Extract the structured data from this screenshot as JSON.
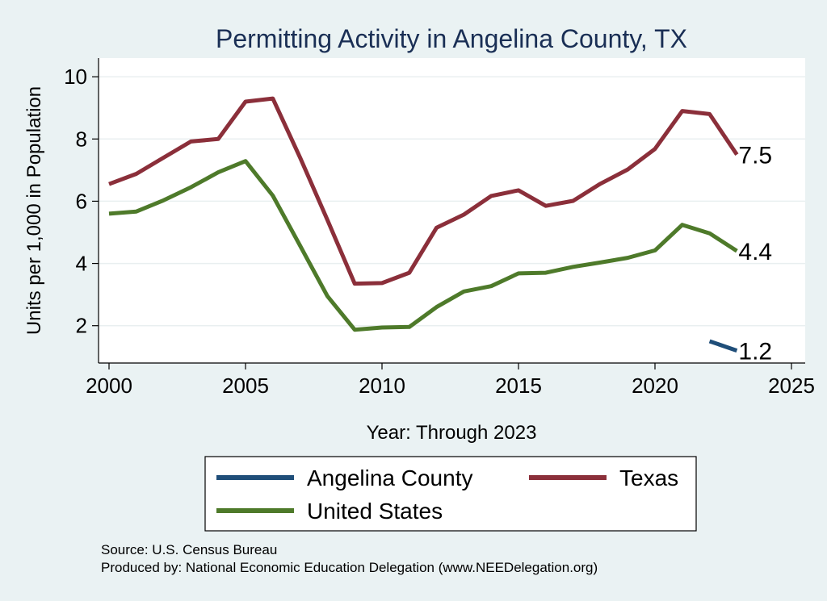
{
  "chart_data": {
    "type": "line",
    "title": "Permitting Activity in Angelina County, TX",
    "xlabel": "Year: Through 2023",
    "ylabel": "Units per 1,000 in Population",
    "xlim": [
      2000,
      2025
    ],
    "ylim": [
      0.8,
      10.6
    ],
    "x_ticks": [
      2000,
      2005,
      2010,
      2015,
      2020,
      2025
    ],
    "x_tick_labels": [
      "2000",
      "2005",
      "2010",
      "2015",
      "2020",
      "2025"
    ],
    "y_ticks": [
      2,
      4,
      6,
      8,
      10
    ],
    "y_tick_labels": [
      "2",
      "4",
      "6",
      "8",
      "10"
    ],
    "grid": true,
    "series": [
      {
        "name": "Angelina County",
        "color": "#1f4e79",
        "x": [
          2022,
          2023
        ],
        "values": [
          1.5,
          1.2
        ],
        "end_label": "1.2"
      },
      {
        "name": "Texas",
        "color": "#8b2f3a",
        "x": [
          2000,
          2001,
          2002,
          2003,
          2004,
          2005,
          2006,
          2007,
          2008,
          2009,
          2010,
          2011,
          2012,
          2013,
          2014,
          2015,
          2016,
          2017,
          2018,
          2019,
          2020,
          2021,
          2022,
          2023
        ],
        "values": [
          6.55,
          6.88,
          7.4,
          7.92,
          8.0,
          9.2,
          9.3,
          7.4,
          5.4,
          3.35,
          3.37,
          3.7,
          5.15,
          5.57,
          6.17,
          6.35,
          5.85,
          6.01,
          6.56,
          7.02,
          7.68,
          8.9,
          8.8,
          7.5
        ],
        "end_label": "7.5"
      },
      {
        "name": "United States",
        "color": "#4e7a2a",
        "x": [
          2000,
          2001,
          2002,
          2003,
          2004,
          2005,
          2006,
          2007,
          2008,
          2009,
          2010,
          2011,
          2012,
          2013,
          2014,
          2015,
          2016,
          2017,
          2018,
          2019,
          2020,
          2021,
          2022,
          2023
        ],
        "values": [
          5.6,
          5.67,
          6.03,
          6.45,
          6.93,
          7.29,
          6.18,
          4.57,
          2.95,
          1.87,
          1.94,
          1.96,
          2.6,
          3.1,
          3.27,
          3.68,
          3.7,
          3.89,
          4.03,
          4.18,
          4.42,
          5.24,
          4.97,
          4.4
        ],
        "end_label": "4.4"
      }
    ],
    "legend": {
      "placement": "bottom",
      "order": [
        "Angelina County",
        "Texas",
        "United States"
      ]
    }
  },
  "footer": {
    "source": "Source: U.S. Census Bureau",
    "produced_by": "Produced by: National Economic Education Delegation (www.NEEDelegation.org)"
  },
  "colors": {
    "background": "#eaf2f3",
    "plot_background": "#ffffff",
    "title": "#1a2f55"
  }
}
